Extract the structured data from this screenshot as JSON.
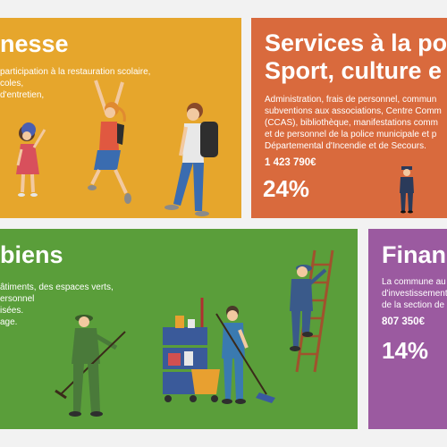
{
  "jeunesse": {
    "title": "nesse",
    "lines": [
      "participation à la restauration scolaire,",
      "coles,",
      "d'entretien,"
    ],
    "color": "#e6a62c"
  },
  "services": {
    "title_lines": [
      "Services à la po",
      "Sport, culture e"
    ],
    "lines": [
      "Administration, frais de personnel, commun",
      "subventions aux associations, Centre Comm",
      "(CCAS), bibliothèque, manifestations comm",
      "et de personnel de la police municipale et p",
      "Départemental d'Incendie et de Secours."
    ],
    "amount": "1 423 790€",
    "percent": "24%",
    "color": "#d96a3d"
  },
  "biens": {
    "title": "biens",
    "lines": [
      "âtiments, des espaces verts,",
      "ersonnel",
      "isées.",
      "age."
    ],
    "color": "#5a9e3a"
  },
  "finances": {
    "title": "Finan",
    "lines": [
      "La commune au",
      "d'investissement",
      "de la section de"
    ],
    "amount": "807 350€",
    "percent": "14%",
    "color": "#9b5aa0"
  },
  "illustrations": {
    "jeunesse": [
      "child-girl-icon",
      "child-jumping-icon",
      "teen-backpack-icon"
    ],
    "services": [
      "police-officer-icon"
    ],
    "biens": [
      "gardener-raking-icon",
      "cleaning-cart-icon",
      "janitor-mopping-icon",
      "worker-ladder-icon"
    ]
  }
}
